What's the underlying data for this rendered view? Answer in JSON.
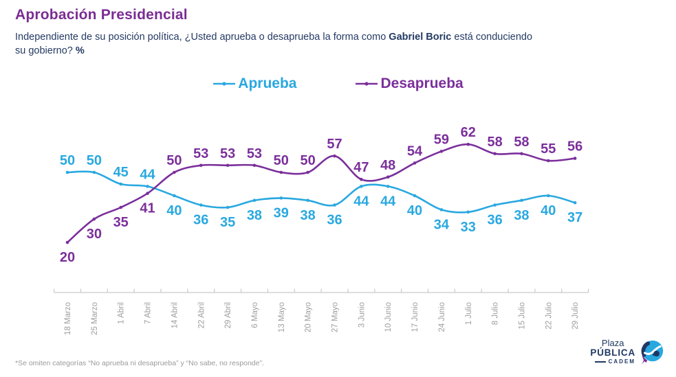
{
  "header": {
    "title": "Aprobación Presidencial",
    "subtitle_p1": "Independiente de su posición política, ¿Usted aprueba o desaprueba la forma como ",
    "subtitle_name": "Gabriel Boric",
    "subtitle_p2": " está conduciendo",
    "subtitle_p3": "su gobierno? ",
    "subtitle_pct": "%"
  },
  "chart_data": {
    "type": "line",
    "categories": [
      "18 Marzo",
      "25 Marzo",
      "1 Abril",
      "7 Abril",
      "14 Abril",
      "22 Abril",
      "29 Abril",
      "6 Mayo",
      "13 Mayo",
      "20 Mayo",
      "27 Mayo",
      "3 Junio",
      "10 Junio",
      "17 Junio",
      "24 Junio",
      "1 Julio",
      "8 Julio",
      "15 Julio",
      "22 Julio",
      "29 Julio"
    ],
    "series": [
      {
        "name": "Aprueba",
        "color": "#29A8E0",
        "values": [
          50,
          50,
          45,
          44,
          40,
          36,
          35,
          38,
          39,
          38,
          36,
          44,
          44,
          40,
          34,
          33,
          36,
          38,
          40,
          37
        ]
      },
      {
        "name": "Desaprueba",
        "color": "#7B2F9B",
        "values": [
          20,
          30,
          35,
          41,
          50,
          53,
          53,
          53,
          50,
          50,
          57,
          47,
          48,
          54,
          59,
          62,
          58,
          58,
          55,
          56
        ]
      }
    ],
    "ylim": [
      15,
      70
    ],
    "grid": false,
    "legend_position": "top-center",
    "x_tick_rotation": -90,
    "data_labels": true
  },
  "footnote": "*Se omiten categorías “No aprueba ni desaprueba” y “No sabe, no responde”.",
  "logo": {
    "line1": "Plaza",
    "line2": "PÚBLICA",
    "line3": "CADEM"
  },
  "colors": {
    "title": "#7B2C93",
    "subtitle": "#243A63",
    "aprueba": "#29A8E0",
    "desaprueba": "#7B2F9B",
    "axis_line": "#C9C9C9",
    "axis_text": "#9E9E9E",
    "footnote": "#9A9A9A",
    "logo_navy": "#1F3864"
  }
}
